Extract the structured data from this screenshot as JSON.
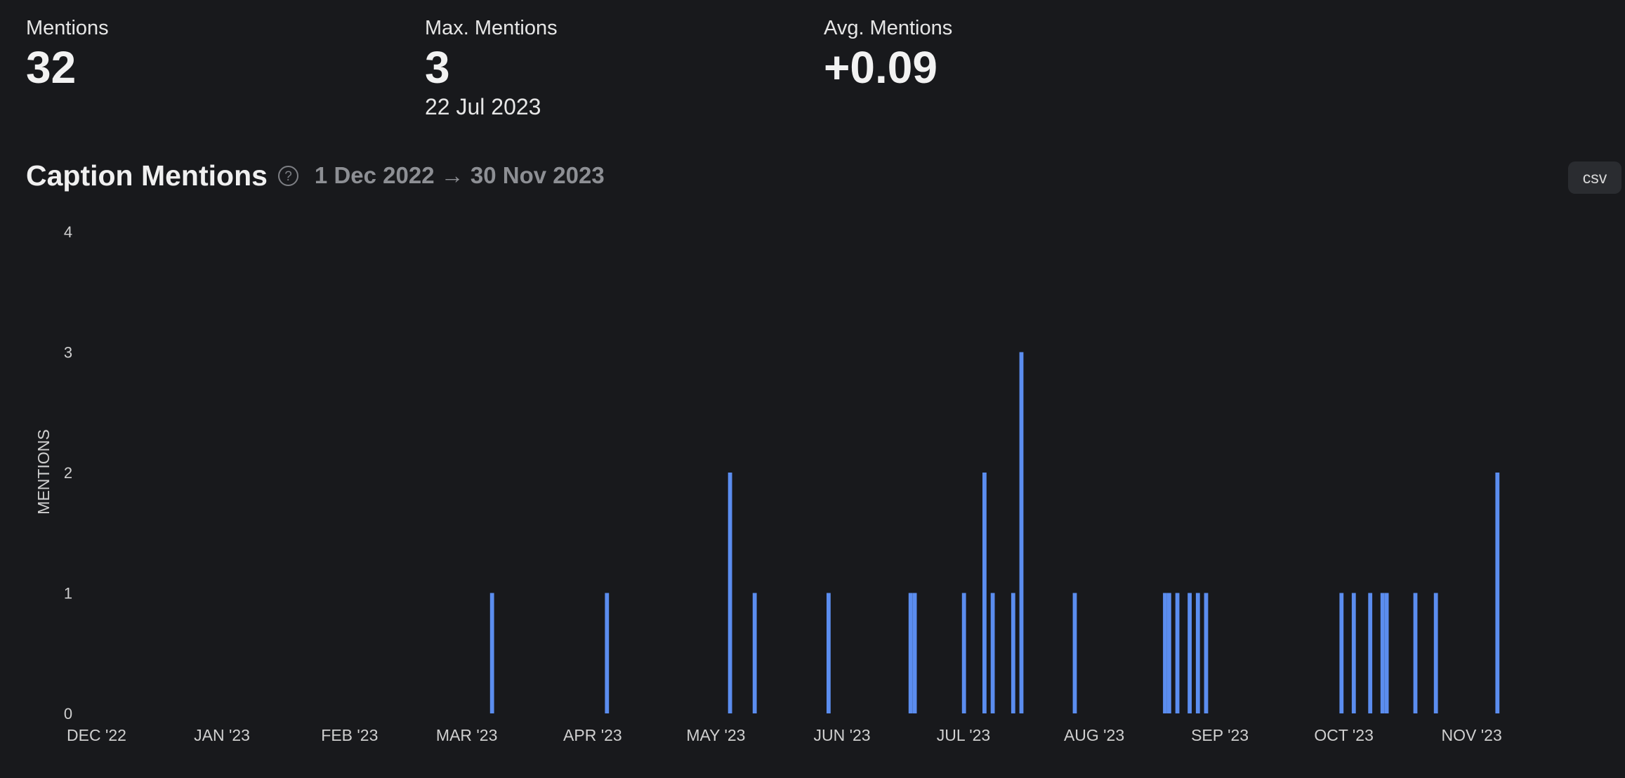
{
  "stats": [
    {
      "label": "Mentions",
      "value": "32",
      "sub": ""
    },
    {
      "label": "Max. Mentions",
      "value": "3",
      "sub": "22 Jul 2023"
    },
    {
      "label": "Avg. Mentions",
      "value": "+0.09",
      "sub": ""
    }
  ],
  "header": {
    "title": "Caption Mentions",
    "date_range": "1 Dec 2022 → 30 Nov 2023",
    "csv_label": "csv"
  },
  "colors": {
    "background": "#18191c",
    "bar": "#5b8def",
    "muted_text": "#8d8f94"
  },
  "icons": {
    "help": "question-circle-icon"
  },
  "chart_data": {
    "type": "bar",
    "title": "Caption Mentions",
    "xlabel": "",
    "ylabel": "MENTIONS",
    "ylim": [
      0,
      4
    ],
    "yticks": [
      0,
      1,
      2,
      3,
      4
    ],
    "xlim": [
      "2022-12-01",
      "2023-11-30"
    ],
    "xticks": [
      {
        "date": "2022-12-01",
        "label": "DEC '22"
      },
      {
        "date": "2023-01-01",
        "label": "JAN '23"
      },
      {
        "date": "2023-02-01",
        "label": "FEB '23"
      },
      {
        "date": "2023-03-01",
        "label": "MAR '23"
      },
      {
        "date": "2023-04-01",
        "label": "APR '23"
      },
      {
        "date": "2023-05-01",
        "label": "MAY '23"
      },
      {
        "date": "2023-06-01",
        "label": "JUN '23"
      },
      {
        "date": "2023-07-01",
        "label": "JUL '23"
      },
      {
        "date": "2023-08-01",
        "label": "AUG '23"
      },
      {
        "date": "2023-09-01",
        "label": "SEP '23"
      },
      {
        "date": "2023-10-01",
        "label": "OCT '23"
      },
      {
        "date": "2023-11-01",
        "label": "NOV '23"
      }
    ],
    "grid": false,
    "points": [
      {
        "date": "2023-03-15",
        "value": 1
      },
      {
        "date": "2023-04-12",
        "value": 1
      },
      {
        "date": "2023-05-12",
        "value": 2
      },
      {
        "date": "2023-05-18",
        "value": 1
      },
      {
        "date": "2023-06-05",
        "value": 1
      },
      {
        "date": "2023-06-25",
        "value": 1
      },
      {
        "date": "2023-06-26",
        "value": 1
      },
      {
        "date": "2023-07-08",
        "value": 1
      },
      {
        "date": "2023-07-13",
        "value": 2
      },
      {
        "date": "2023-07-15",
        "value": 1
      },
      {
        "date": "2023-07-20",
        "value": 1
      },
      {
        "date": "2023-07-22",
        "value": 3
      },
      {
        "date": "2023-08-04",
        "value": 1
      },
      {
        "date": "2023-08-26",
        "value": 1
      },
      {
        "date": "2023-08-27",
        "value": 1
      },
      {
        "date": "2023-08-29",
        "value": 1
      },
      {
        "date": "2023-09-01",
        "value": 1
      },
      {
        "date": "2023-09-03",
        "value": 1
      },
      {
        "date": "2023-09-05",
        "value": 1
      },
      {
        "date": "2023-10-08",
        "value": 1
      },
      {
        "date": "2023-10-11",
        "value": 1
      },
      {
        "date": "2023-10-15",
        "value": 1
      },
      {
        "date": "2023-10-18",
        "value": 1
      },
      {
        "date": "2023-10-19",
        "value": 1
      },
      {
        "date": "2023-10-26",
        "value": 1
      },
      {
        "date": "2023-10-31",
        "value": 1
      },
      {
        "date": "2023-11-15",
        "value": 2
      }
    ]
  }
}
